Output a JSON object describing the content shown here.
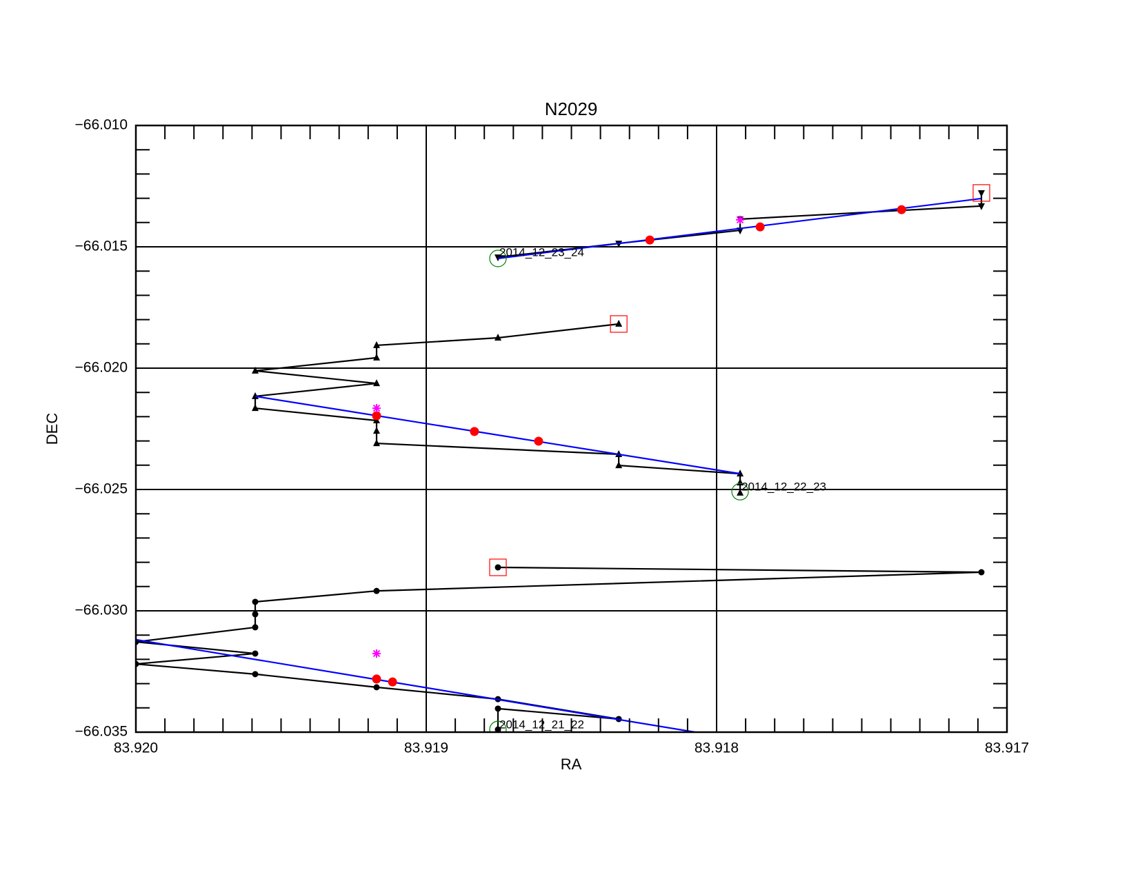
{
  "chart_data": {
    "type": "line",
    "title": "N2029",
    "xlabel": "RA",
    "ylabel": "DEC",
    "xlim": [
      83.92,
      83.917
    ],
    "ylim": [
      -66.035,
      -66.01
    ],
    "xticks": [
      {
        "value": 83.92,
        "label": "83.920"
      },
      83.919,
      83.918,
      83.917
    ],
    "yticks": [
      {
        "value": -66.035,
        "label": "−66.035"
      },
      {
        "value": -66.03,
        "label": "−66.030"
      },
      {
        "value": -66.025,
        "label": "−66.025"
      },
      {
        "value": -66.02,
        "label": "−66.020"
      },
      {
        "value": -66.015,
        "label": "−66.015"
      },
      {
        "value": -66.01,
        "label": "−66.010"
      }
    ],
    "x_minor_divisions": 10,
    "y_minor_divisions": 5,
    "grid": true,
    "series": [
      {
        "color": "#000000",
        "marker": "triangle-down",
        "line": true,
        "x": [
          83.918753,
          83.918337,
          83.917919,
          83.917919,
          83.917088,
          83.917088
        ],
        "values": [
          -66.01543,
          -66.01486,
          -66.01432,
          -66.01386,
          -66.01332,
          -66.01278
        ]
      },
      {
        "color": "#000000",
        "marker": "triangle-up",
        "line": true,
        "x": [
          83.917919,
          83.917919,
          83.917919,
          83.918337,
          83.918337,
          83.919171,
          83.919171,
          83.919171,
          83.919589,
          83.919589,
          83.919171,
          83.919589,
          83.919171,
          83.919171,
          83.918753,
          83.918337
        ],
        "values": [
          -66.02514,
          -66.02472,
          -66.02435,
          -66.02401,
          -66.02355,
          -66.0231,
          -66.02259,
          -66.02216,
          -66.02165,
          -66.02116,
          -66.02063,
          -66.02011,
          -66.01957,
          -66.01906,
          -66.01875,
          -66.01818
        ]
      },
      {
        "color": "#000000",
        "marker": "circle",
        "line": true,
        "x": [
          83.918753,
          83.918753,
          83.918337,
          83.918753,
          83.919171,
          83.919589,
          83.92,
          83.919589,
          83.92,
          83.919589,
          83.919589,
          83.919589,
          83.919171,
          83.917088,
          83.918753
        ],
        "values": [
          -66.03489,
          -66.03403,
          -66.03446,
          -66.03364,
          -66.03315,
          -66.03261,
          -66.03219,
          -66.03176,
          -66.03128,
          -66.03068,
          -66.03014,
          -66.02963,
          -66.02918,
          -66.02841,
          -66.02821
        ]
      },
      {
        "color": "#0000ff",
        "marker": "none",
        "line": true,
        "x": [
          83.918753,
          83.917088,
          null,
          83.919589,
          83.917919,
          null,
          83.92,
          83.918074
        ],
        "values": [
          -66.01548,
          -66.01301,
          null,
          -66.02116,
          -66.02435,
          null,
          -66.03119,
          -66.035
        ]
      },
      {
        "color": "#ff0000",
        "marker": "dot",
        "line": false,
        "x": [
          83.91823,
          83.91785,
          83.917363,
          83.919171,
          83.918834,
          83.918613,
          83.919171,
          83.919116
        ],
        "values": [
          -66.01472,
          -66.01418,
          -66.01347,
          -66.02196,
          -66.02261,
          -66.02301,
          -66.03281,
          -66.03293
        ]
      },
      {
        "color": "#ff00ff",
        "marker": "asterisk",
        "line": false,
        "x": [
          83.917919,
          83.919171,
          83.919171
        ],
        "values": [
          -66.01389,
          -66.02165,
          -66.03176
        ]
      },
      {
        "color": "#008000",
        "marker": "open-circle",
        "line": false,
        "x": [
          83.918753,
          83.917919,
          83.918753
        ],
        "values": [
          -66.01548,
          -66.02509,
          -66.03489
        ]
      },
      {
        "color": "#ff0000",
        "marker": "open-square",
        "line": false,
        "x": [
          83.917088,
          83.918337,
          83.918753
        ],
        "values": [
          -66.01278,
          -66.01818,
          -66.02821
        ]
      }
    ],
    "annotations": [
      {
        "text": "2014_12_23_24",
        "x": 83.918753,
        "y": -66.01543
      },
      {
        "text": "2014_12_22_23",
        "x": 83.917919,
        "y": -66.02509
      },
      {
        "text": "2014_12_21_22",
        "x": 83.918753,
        "y": -66.03489
      }
    ]
  }
}
